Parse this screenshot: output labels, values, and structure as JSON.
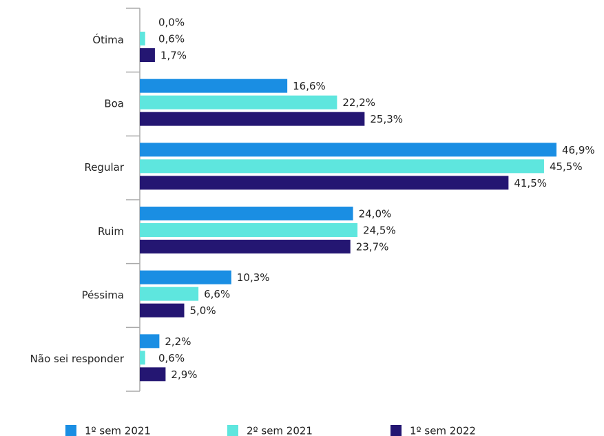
{
  "chart_data": {
    "type": "bar",
    "orientation": "horizontal",
    "categories": [
      "Ótima",
      "Boa",
      "Regular",
      "Ruim",
      "Péssima",
      "Não sei responder"
    ],
    "xlim": [
      0,
      50
    ],
    "series": [
      {
        "name": "1º sem 2021",
        "color": "#1a8ee3",
        "values": [
          0.0,
          16.6,
          46.9,
          24.0,
          10.3,
          2.2
        ],
        "value_labels": [
          "0,0%",
          "16,6%",
          "46,9%",
          "24,0%",
          "10,3%",
          "2,2%"
        ]
      },
      {
        "name": "2º sem 2021",
        "color": "#5ee6de",
        "values": [
          0.6,
          22.2,
          45.5,
          24.5,
          6.6,
          0.6
        ],
        "value_labels": [
          "0,6%",
          "22,2%",
          "45,5%",
          "24,5%",
          "6,6%",
          "0,6%"
        ]
      },
      {
        "name": "1º sem 2022",
        "color": "#241672",
        "values": [
          1.7,
          25.3,
          41.5,
          23.7,
          5.0,
          2.9
        ],
        "value_labels": [
          "1,7%",
          "25,3%",
          "41,5%",
          "23,7%",
          "5,0%",
          "2,9%"
        ]
      }
    ],
    "legend": "bottom"
  }
}
